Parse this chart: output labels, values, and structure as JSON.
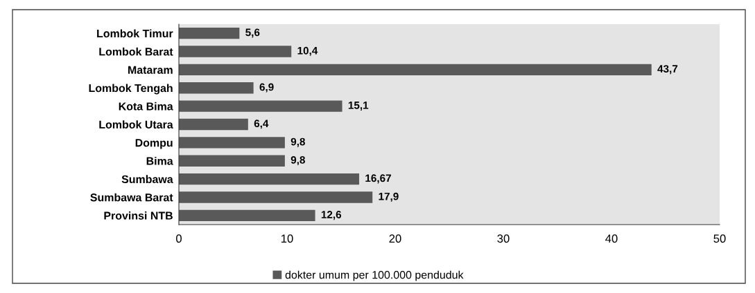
{
  "chart_data": {
    "type": "bar",
    "orientation": "horizontal",
    "categories": [
      "Lombok Timur",
      "Lombok Barat",
      "Mataram",
      "Lombok Tengah",
      "Kota Bima",
      "Lombok Utara",
      "Dompu",
      "Bima",
      "Sumbawa",
      "Sumbawa Barat",
      "Provinsi NTB"
    ],
    "series": [
      {
        "name": "dokter umum per 100.000 penduduk",
        "color": "#595959",
        "values": [
          5.6,
          10.4,
          43.7,
          6.9,
          15.1,
          6.4,
          9.8,
          9.8,
          16.67,
          17.9,
          12.6
        ],
        "value_labels": [
          "5,6",
          "10,4",
          "43,7",
          "6,9",
          "15,1",
          "6,4",
          "9,8",
          "9,8",
          "16,67",
          "17,9",
          "12,6"
        ]
      }
    ],
    "xlim": [
      0,
      50
    ],
    "xticks": [
      0,
      10,
      20,
      30,
      40,
      50
    ],
    "grid": false,
    "legend": "bottom"
  }
}
